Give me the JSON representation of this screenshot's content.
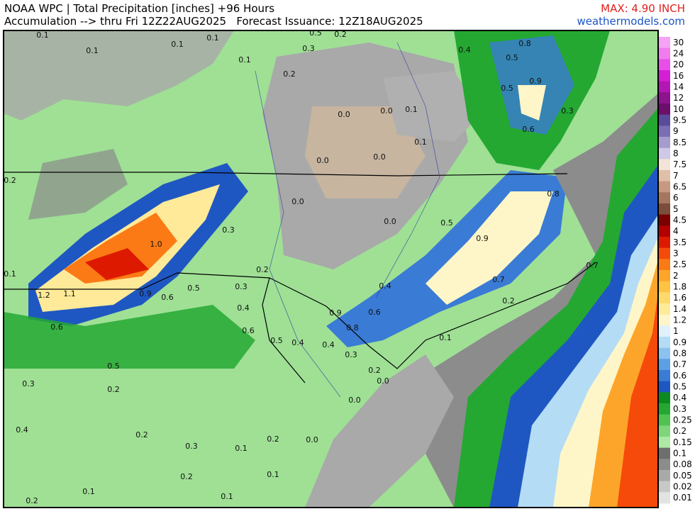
{
  "header": {
    "title": "NOAA WPC | Total Precipitation [inches] +96 Hours",
    "subtitle": "Accumulation --> thru Fri 12Z22AUG2025   Forecast Issuance: 12Z18AUG2025",
    "max": "MAX: 4.90 INCH",
    "site": "weathermodels.com"
  },
  "colorbar": [
    {
      "label": "30",
      "color": "#f5a3f5"
    },
    {
      "label": "24",
      "color": "#f07cf0"
    },
    {
      "label": "20",
      "color": "#e84fe8"
    },
    {
      "label": "16",
      "color": "#d41fd4"
    },
    {
      "label": "14",
      "color": "#b317b3"
    },
    {
      "label": "12",
      "color": "#8e138e"
    },
    {
      "label": "10",
      "color": "#6b0f6b"
    },
    {
      "label": "9.5",
      "color": "#5a4b9a"
    },
    {
      "label": "9",
      "color": "#7b6fb3"
    },
    {
      "label": "8.5",
      "color": "#a49ccc"
    },
    {
      "label": "8",
      "color": "#cfc8e6"
    },
    {
      "label": "7.5",
      "color": "#f4e3d7"
    },
    {
      "label": "7",
      "color": "#e0bfa8"
    },
    {
      "label": "6.5",
      "color": "#c59a80"
    },
    {
      "label": "6",
      "color": "#a4775e"
    },
    {
      "label": "5",
      "color": "#7a4e3a"
    },
    {
      "label": "4.5",
      "color": "#7a0000"
    },
    {
      "label": "4",
      "color": "#b30000"
    },
    {
      "label": "3.5",
      "color": "#dd1a00"
    },
    {
      "label": "3",
      "color": "#f54a0a"
    },
    {
      "label": "2.5",
      "color": "#fb7a15"
    },
    {
      "label": "2",
      "color": "#fda52a"
    },
    {
      "label": "1.8",
      "color": "#fdc342"
    },
    {
      "label": "1.6",
      "color": "#fed96b"
    },
    {
      "label": "1.4",
      "color": "#feea98"
    },
    {
      "label": "1.2",
      "color": "#fef6c8"
    },
    {
      "label": "1",
      "color": "#dff1fb"
    },
    {
      "label": "0.9",
      "color": "#b5dcf5"
    },
    {
      "label": "0.8",
      "color": "#8cc2ee"
    },
    {
      "label": "0.7",
      "color": "#5c9fe3"
    },
    {
      "label": "0.6",
      "color": "#3a7bd5"
    },
    {
      "label": "0.5",
      "color": "#1f57c2"
    },
    {
      "label": "0.4",
      "color": "#0b8a1f"
    },
    {
      "label": "0.3",
      "color": "#24a832"
    },
    {
      "label": "0.25",
      "color": "#4fc24f"
    },
    {
      "label": "0.2",
      "color": "#7fd67a"
    },
    {
      "label": "0.15",
      "color": "#ade8a4"
    },
    {
      "label": "0.1",
      "color": "#6e6e6e"
    },
    {
      "label": "0.08",
      "color": "#8c8c8c"
    },
    {
      "label": "0.05",
      "color": "#a9a9a9"
    },
    {
      "label": "0.02",
      "color": "#c8c8c8"
    },
    {
      "label": "0.01",
      "color": "#e3e3e3"
    }
  ],
  "map": {
    "labels": [
      "0.1",
      "0.1",
      "0.1",
      "0.1",
      "0.5",
      "0.2",
      "0.3",
      "0.1",
      "0.2",
      "0.0",
      "0.0",
      "0.1",
      "0.0",
      "0.0",
      "0.0",
      "0.0",
      "0.1",
      "0.4",
      "0.8",
      "0.5",
      "0.9",
      "0.5",
      "0.3",
      "0.6",
      "0.8",
      "0.5",
      "0.9",
      "0.7",
      "0.7",
      "0.2",
      "0.4",
      "0.6",
      "0.9",
      "0.8",
      "0.3",
      "0.4",
      "0.6",
      "0.5",
      "0.4",
      "0.4",
      "0.3",
      "0.2",
      "0.0",
      "0.0",
      "0.1",
      "1.0",
      "1.2",
      "1.1",
      "0.9",
      "0.6",
      "0.5",
      "0.3",
      "0.2",
      "0.1",
      "0.2",
      "0.6",
      "0.5",
      "0.3",
      "0.2",
      "0.4",
      "0.2",
      "0.3",
      "0.1",
      "0.2",
      "0.0",
      "0.1",
      "0.2",
      "0.1",
      "0.2",
      "0.1"
    ]
  }
}
